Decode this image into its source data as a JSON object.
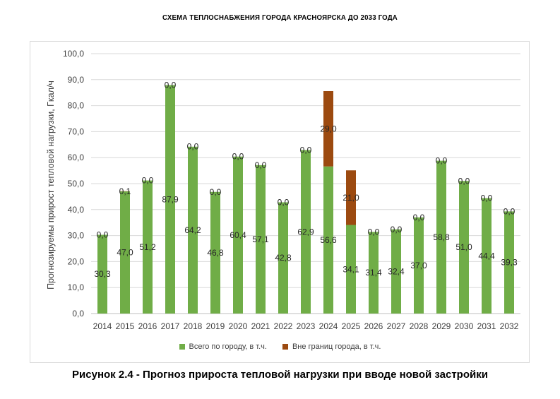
{
  "header": {
    "title": "СХЕМА ТЕПЛОСНАБЖЕНИЯ  ГОРОДА КРАСНОЯРСКА  ДО 2033 ГОДА"
  },
  "caption": "Рисунок 2.4 - Прогноз прироста тепловой нагрузки при вводе новой застройки",
  "colors": {
    "green": "#70ad47",
    "brown": "#9c4a10",
    "grid": "#d9d9d9",
    "axis_text": "#404040",
    "label_text": "#262626"
  },
  "chart_data": {
    "type": "bar",
    "stacked": true,
    "title": "",
    "xlabel": "",
    "ylabel": "Прогнозируемы прирост тепловой нагрузки, Гкал/ч",
    "ylim": [
      0,
      100
    ],
    "yticks": [
      "0,0",
      "10,0",
      "20,0",
      "30,0",
      "40,0",
      "50,0",
      "60,0",
      "70,0",
      "80,0",
      "90,0",
      "100,0"
    ],
    "grid": true,
    "legend_position": "bottom",
    "categories": [
      "2014",
      "2015",
      "2016",
      "2017",
      "2018",
      "2019",
      "2020",
      "2021",
      "2022",
      "2023",
      "2024",
      "2025",
      "2026",
      "2027",
      "2028",
      "2029",
      "2030",
      "2031",
      "2032"
    ],
    "series": [
      {
        "name": "Всего по городу, в т.ч.",
        "color": "#70ad47",
        "values": [
          30.3,
          47.0,
          51.2,
          87.9,
          64.2,
          46.8,
          60.4,
          57.1,
          42.8,
          62.9,
          56.6,
          34.1,
          31.4,
          32.4,
          37.0,
          58.8,
          51.0,
          44.4,
          39.3
        ],
        "labels": [
          "30,3",
          "47,0",
          "51,2",
          "87,9",
          "64,2",
          "46,8",
          "60,4",
          "57,1",
          "42,8",
          "62,9",
          "56,6",
          "34,1",
          "31,4",
          "32,4",
          "37,0",
          "58,8",
          "51,0",
          "44,4",
          "39,3"
        ]
      },
      {
        "name": "Вне границ города, в т.ч.",
        "color": "#9c4a10",
        "values": [
          0.0,
          0.1,
          0.0,
          0.0,
          0.0,
          0.0,
          0.0,
          0.0,
          0.0,
          0.0,
          29.0,
          21.0,
          0.0,
          0.0,
          0.0,
          0.0,
          0.0,
          0.0,
          0.0
        ],
        "labels": [
          "0,0",
          "0,1",
          "0,0",
          "0,0",
          "0,0",
          "0,0",
          "0,0",
          "0,0",
          "0,0",
          "0,0",
          "29,0",
          "21,0",
          "0,0",
          "0,0",
          "0,0",
          "0,0",
          "0,0",
          "0,0",
          "0,0"
        ]
      }
    ]
  }
}
